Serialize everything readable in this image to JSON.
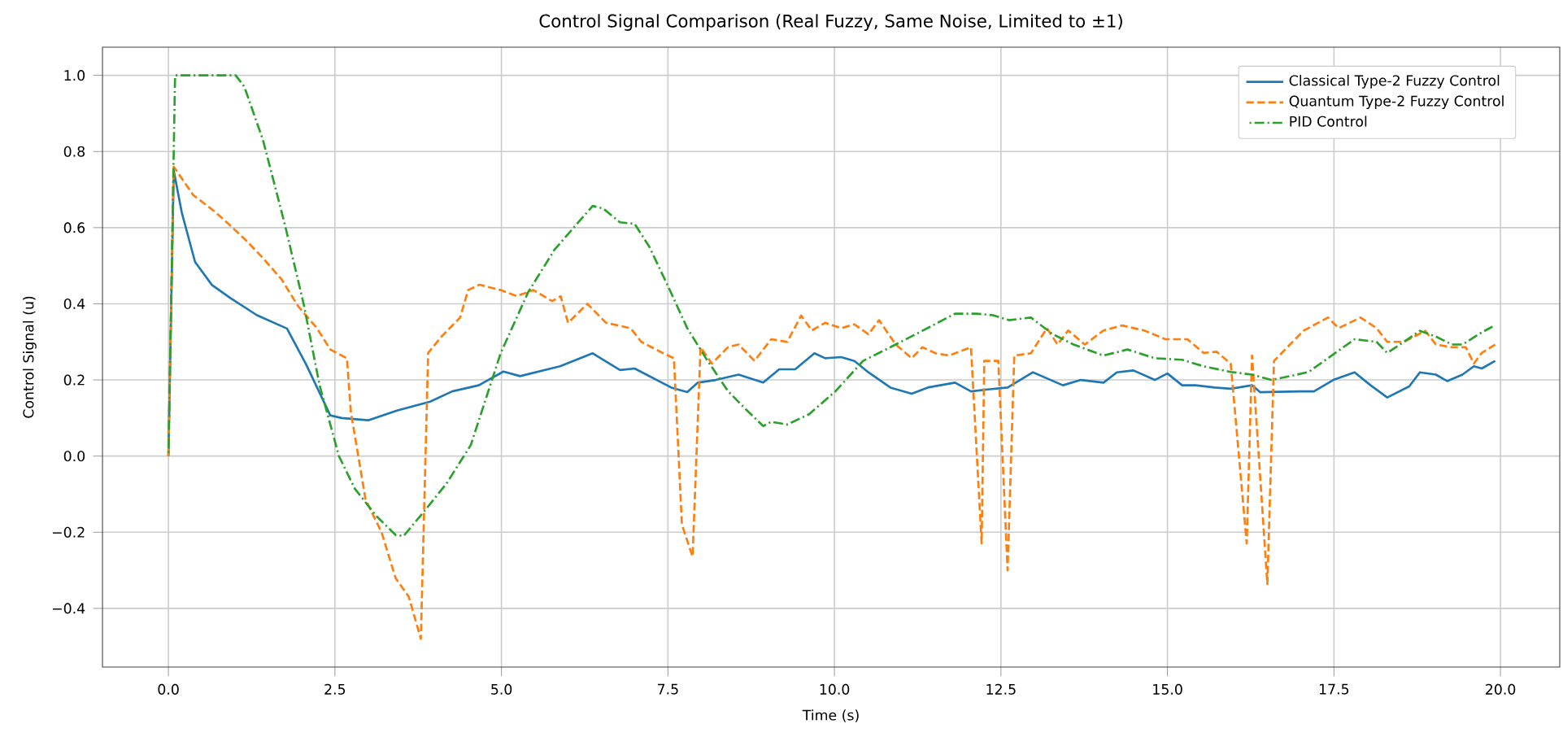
{
  "chart_data": {
    "type": "line",
    "title": "Control Signal Comparison (Real Fuzzy, Same Noise, Limited to ±1)",
    "xlabel": "Time (s)",
    "ylabel": "Control Signal (u)",
    "xlim": [
      -0.99,
      20.89
    ],
    "ylim": [
      -0.554,
      1.074
    ],
    "xticks": [
      {
        "value": 0,
        "label": "0.0"
      },
      {
        "value": 2.5,
        "label": "2.5"
      },
      {
        "value": 5,
        "label": "5.0"
      },
      {
        "value": 7.5,
        "label": "7.5"
      },
      {
        "value": 10,
        "label": "10.0"
      },
      {
        "value": 12.5,
        "label": "12.5"
      },
      {
        "value": 15,
        "label": "15.0"
      },
      {
        "value": 17.5,
        "label": "17.5"
      },
      {
        "value": 20,
        "label": "20.0"
      }
    ],
    "yticks": [
      {
        "value": -0.4,
        "label": "−0.4"
      },
      {
        "value": -0.2,
        "label": "−0.2"
      },
      {
        "value": 0,
        "label": "0.0"
      },
      {
        "value": 0.2,
        "label": "0.2"
      },
      {
        "value": 0.4,
        "label": "0.4"
      },
      {
        "value": 0.6,
        "label": "0.6"
      },
      {
        "value": 0.8,
        "label": "0.8"
      },
      {
        "value": 1.0,
        "label": "1.0"
      }
    ],
    "grid": true,
    "legend": "top right",
    "series": [
      {
        "name": "Classical Type-2 Fuzzy Control",
        "color": "#1f77b4",
        "line_style": "solid",
        "x": [
          0,
          0.08,
          0.2,
          0.4,
          0.65,
          0.93,
          1.33,
          1.78,
          2.07,
          2.43,
          2.6,
          3.0,
          3.44,
          3.93,
          4.26,
          4.66,
          5.03,
          5.28,
          5.88,
          6.37,
          6.78,
          7.0,
          7.55,
          7.79,
          7.95,
          8.22,
          8.56,
          8.93,
          9.17,
          9.41,
          9.7,
          9.86,
          10.1,
          10.3,
          10.51,
          10.84,
          11.16,
          11.4,
          11.81,
          12.05,
          12.3,
          12.6,
          12.98,
          13.43,
          13.7,
          14.04,
          14.24,
          14.49,
          14.81,
          15.0,
          15.22,
          15.42,
          15.71,
          15.95,
          16.27,
          16.39,
          17.0,
          17.2,
          17.49,
          17.81,
          18.05,
          18.3,
          18.63,
          18.79,
          19.03,
          19.2,
          19.43,
          19.6,
          19.72,
          19.92
        ],
        "values": [
          0,
          0.75,
          0.64,
          0.51,
          0.45,
          0.415,
          0.37,
          0.335,
          0.24,
          0.107,
          0.1,
          0.094,
          0.12,
          0.143,
          0.17,
          0.186,
          0.222,
          0.21,
          0.236,
          0.27,
          0.226,
          0.23,
          0.18,
          0.168,
          0.193,
          0.2,
          0.214,
          0.193,
          0.228,
          0.228,
          0.27,
          0.257,
          0.26,
          0.25,
          0.22,
          0.18,
          0.164,
          0.18,
          0.193,
          0.17,
          0.175,
          0.18,
          0.22,
          0.186,
          0.2,
          0.193,
          0.22,
          0.225,
          0.2,
          0.217,
          0.186,
          0.186,
          0.18,
          0.177,
          0.186,
          0.168,
          0.17,
          0.17,
          0.2,
          0.22,
          0.186,
          0.154,
          0.183,
          0.22,
          0.214,
          0.197,
          0.214,
          0.236,
          0.23,
          0.25
        ]
      },
      {
        "name": "Quantum Type-2 Fuzzy Control",
        "color": "#ff7f0e",
        "line_style": "dashed",
        "x": [
          0,
          0.08,
          0.37,
          0.69,
          0.92,
          1.18,
          1.42,
          1.7,
          1.95,
          2.23,
          2.43,
          2.68,
          2.74,
          2.96,
          3.2,
          3.41,
          3.61,
          3.79,
          3.9,
          4.1,
          4.38,
          4.5,
          4.67,
          4.99,
          5.23,
          5.48,
          5.76,
          5.89,
          6.0,
          6.29,
          6.57,
          6.94,
          7.1,
          7.42,
          7.59,
          7.71,
          7.87,
          7.99,
          8.16,
          8.4,
          8.56,
          8.8,
          9.05,
          9.29,
          9.5,
          9.66,
          9.86,
          10.1,
          10.3,
          10.51,
          10.67,
          10.92,
          11.16,
          11.32,
          11.52,
          11.72,
          12.05,
          12.21,
          12.25,
          12.46,
          12.6,
          12.7,
          12.95,
          13.19,
          13.35,
          13.51,
          13.76,
          14.04,
          14.32,
          14.65,
          14.97,
          15.3,
          15.54,
          15.74,
          15.95,
          16.19,
          16.27,
          16.5,
          16.6,
          16.8,
          17.04,
          17.41,
          17.57,
          17.9,
          18.14,
          18.3,
          18.55,
          18.87,
          19.03,
          19.27,
          19.48,
          19.6,
          19.72,
          19.92
        ],
        "values": [
          0,
          0.76,
          0.686,
          0.643,
          0.607,
          0.564,
          0.52,
          0.464,
          0.393,
          0.336,
          0.28,
          0.257,
          0.115,
          -0.114,
          -0.2,
          -0.32,
          -0.37,
          -0.48,
          0.271,
          0.314,
          0.364,
          0.436,
          0.45,
          0.436,
          0.42,
          0.436,
          0.407,
          0.42,
          0.35,
          0.4,
          0.35,
          0.336,
          0.3,
          0.271,
          0.257,
          -0.18,
          -0.264,
          0.286,
          0.243,
          0.286,
          0.293,
          0.25,
          0.307,
          0.3,
          0.369,
          0.33,
          0.35,
          0.336,
          0.346,
          0.32,
          0.357,
          0.293,
          0.257,
          0.286,
          0.27,
          0.264,
          0.286,
          -0.229,
          0.25,
          0.25,
          -0.3,
          0.264,
          0.27,
          0.336,
          0.293,
          0.33,
          0.293,
          0.33,
          0.343,
          0.33,
          0.307,
          0.307,
          0.271,
          0.274,
          0.243,
          -0.229,
          0.264,
          -0.336,
          0.25,
          0.286,
          0.329,
          0.364,
          0.336,
          0.364,
          0.336,
          0.3,
          0.3,
          0.329,
          0.293,
          0.286,
          0.286,
          0.243,
          0.271,
          0.293
        ]
      },
      {
        "name": "PID Control",
        "color": "#2ca02c",
        "line_style": "dashdot",
        "x": [
          0,
          0.1,
          1.01,
          1.14,
          1.42,
          1.74,
          2.03,
          2.27,
          2.56,
          2.8,
          3.12,
          3.41,
          3.53,
          3.85,
          4.18,
          4.54,
          4.99,
          5.4,
          5.8,
          6.05,
          6.37,
          6.53,
          6.78,
          7.0,
          7.22,
          7.51,
          7.79,
          8.07,
          8.4,
          8.68,
          8.93,
          9.05,
          9.29,
          9.62,
          10.02,
          10.43,
          10.84,
          11.32,
          11.81,
          12.13,
          12.38,
          12.62,
          12.95,
          13.27,
          13.59,
          14.04,
          14.4,
          14.81,
          15.22,
          15.54,
          15.95,
          16.27,
          16.56,
          16.84,
          17.12,
          17.41,
          17.81,
          18.14,
          18.3,
          18.55,
          18.79,
          19.03,
          19.27,
          19.43,
          19.68,
          19.88
        ],
        "values": [
          0,
          1.0,
          1.0,
          0.97,
          0.83,
          0.614,
          0.4,
          0.186,
          0.0,
          -0.086,
          -0.157,
          -0.207,
          -0.21,
          -0.143,
          -0.071,
          0.029,
          0.271,
          0.43,
          0.543,
          0.593,
          0.657,
          0.65,
          0.614,
          0.61,
          0.55,
          0.443,
          0.336,
          0.257,
          0.171,
          0.121,
          0.079,
          0.09,
          0.083,
          0.11,
          0.171,
          0.25,
          0.286,
          0.329,
          0.374,
          0.374,
          0.37,
          0.357,
          0.364,
          0.321,
          0.293,
          0.264,
          0.28,
          0.257,
          0.253,
          0.236,
          0.221,
          0.214,
          0.2,
          0.21,
          0.221,
          0.257,
          0.307,
          0.3,
          0.271,
          0.3,
          0.329,
          0.314,
          0.293,
          0.293,
          0.321,
          0.34
        ]
      }
    ]
  }
}
